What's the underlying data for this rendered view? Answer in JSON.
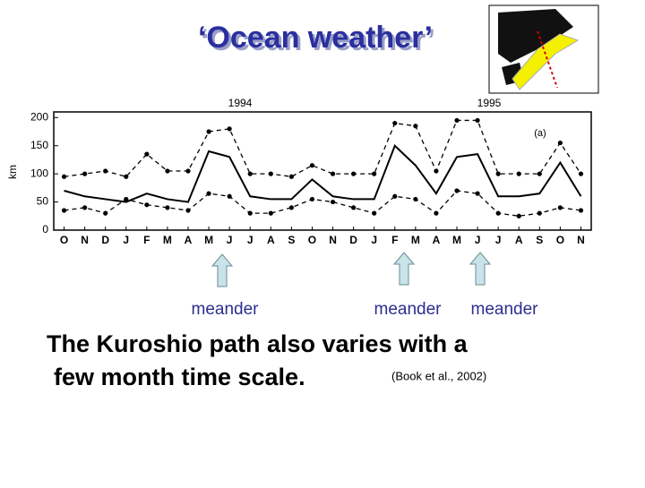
{
  "title": "‘Ocean weather’",
  "arrow_labels": [
    "meander",
    "meander",
    "meander"
  ],
  "body": [
    "The Kuroshio path also varies with a",
    "few month time scale."
  ],
  "citation": "(Book et al., 2002)",
  "chart_data": {
    "type": "line",
    "y_label": "km",
    "annotations": [
      "1994",
      "1995",
      "(a)"
    ],
    "categories": [
      "O",
      "N",
      "D",
      "J",
      "F",
      "M",
      "A",
      "M",
      "J",
      "J",
      "A",
      "S",
      "O",
      "N",
      "D",
      "J",
      "F",
      "M",
      "A",
      "M",
      "J",
      "J",
      "A",
      "S",
      "O",
      "N"
    ],
    "series": [
      {
        "color": "#000000",
        "dash": false,
        "markers": false,
        "values": [
          70,
          60,
          55,
          50,
          65,
          55,
          50,
          140,
          130,
          60,
          55,
          55,
          90,
          60,
          55,
          55,
          150,
          115,
          65,
          130,
          135,
          60,
          60,
          65,
          120,
          60
        ]
      },
      {
        "color": "#000000",
        "dash": true,
        "markers": true,
        "values": [
          95,
          100,
          105,
          95,
          135,
          105,
          105,
          175,
          180,
          100,
          100,
          95,
          115,
          100,
          100,
          100,
          190,
          185,
          105,
          195,
          195,
          100,
          100,
          100,
          155,
          100
        ]
      },
      {
        "color": "#000000",
        "dash": true,
        "markers": true,
        "values": [
          35,
          40,
          30,
          55,
          45,
          40,
          35,
          65,
          60,
          30,
          30,
          40,
          55,
          50,
          40,
          30,
          60,
          55,
          30,
          70,
          65,
          30,
          25,
          30,
          40,
          35
        ]
      }
    ],
    "ylim": [
      0,
      210
    ],
    "yticks": [
      0,
      50,
      100,
      150,
      200
    ]
  }
}
